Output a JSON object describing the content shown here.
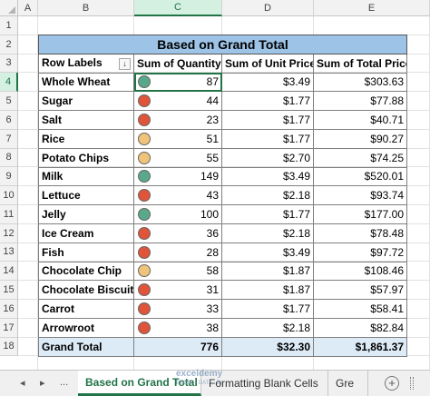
{
  "columns": [
    "A",
    "B",
    "C",
    "D",
    "E"
  ],
  "selected_column": "C",
  "rows": [
    "1",
    "2",
    "3",
    "4",
    "5",
    "6",
    "7",
    "8",
    "9",
    "10",
    "11",
    "12",
    "13",
    "14",
    "15",
    "16",
    "17",
    "18"
  ],
  "selected_row": "4",
  "pivot": {
    "title": "Based on Grand Total",
    "headers": {
      "row_labels": "Row Labels",
      "filter_icon": "↓",
      "qty": "Sum of Quantity",
      "unit_price": "Sum of Unit Price",
      "total_price": "Sum of Total Price"
    },
    "colors": {
      "green": "#5aa88a",
      "yellow": "#efc47a",
      "red": "#e0543a"
    },
    "items": [
      {
        "label": "Whole Wheat",
        "qty": "87",
        "unit": "$3.49",
        "total": "$303.63",
        "dot": "green"
      },
      {
        "label": "Sugar",
        "qty": "44",
        "unit": "$1.77",
        "total": "$77.88",
        "dot": "red"
      },
      {
        "label": "Salt",
        "qty": "23",
        "unit": "$1.77",
        "total": "$40.71",
        "dot": "red"
      },
      {
        "label": "Rice",
        "qty": "51",
        "unit": "$1.77",
        "total": "$90.27",
        "dot": "yellow"
      },
      {
        "label": "Potato Chips",
        "qty": "55",
        "unit": "$2.70",
        "total": "$74.25",
        "dot": "yellow"
      },
      {
        "label": "Milk",
        "qty": "149",
        "unit": "$3.49",
        "total": "$520.01",
        "dot": "green"
      },
      {
        "label": "Lettuce",
        "qty": "43",
        "unit": "$2.18",
        "total": "$93.74",
        "dot": "red"
      },
      {
        "label": "Jelly",
        "qty": "100",
        "unit": "$1.77",
        "total": "$177.00",
        "dot": "green"
      },
      {
        "label": "Ice Cream",
        "qty": "36",
        "unit": "$2.18",
        "total": "$78.48",
        "dot": "red"
      },
      {
        "label": "Fish",
        "qty": "28",
        "unit": "$3.49",
        "total": "$97.72",
        "dot": "red"
      },
      {
        "label": "Chocolate Chip",
        "qty": "58",
        "unit": "$1.87",
        "total": "$108.46",
        "dot": "yellow"
      },
      {
        "label": "Chocolate Biscuits",
        "qty": "31",
        "unit": "$1.87",
        "total": "$57.97",
        "dot": "red"
      },
      {
        "label": "Carrot",
        "qty": "33",
        "unit": "$1.77",
        "total": "$58.41",
        "dot": "red"
      },
      {
        "label": "Arrowroot",
        "qty": "38",
        "unit": "$2.18",
        "total": "$82.84",
        "dot": "red"
      }
    ],
    "grand_total": {
      "label": "Grand Total",
      "qty": "776",
      "unit": "$32.30",
      "total": "$1,861.37"
    }
  },
  "tabs": {
    "prev_icon": "◂",
    "next_icon": "▸",
    "more": "...",
    "active": "Based on Grand Total",
    "second": "Formatting Blank Cells",
    "third": "Gre",
    "add_icon": "+"
  },
  "watermark": {
    "line1": "exceldemy",
    "line2": "EXCEL · DATA · BI"
  }
}
